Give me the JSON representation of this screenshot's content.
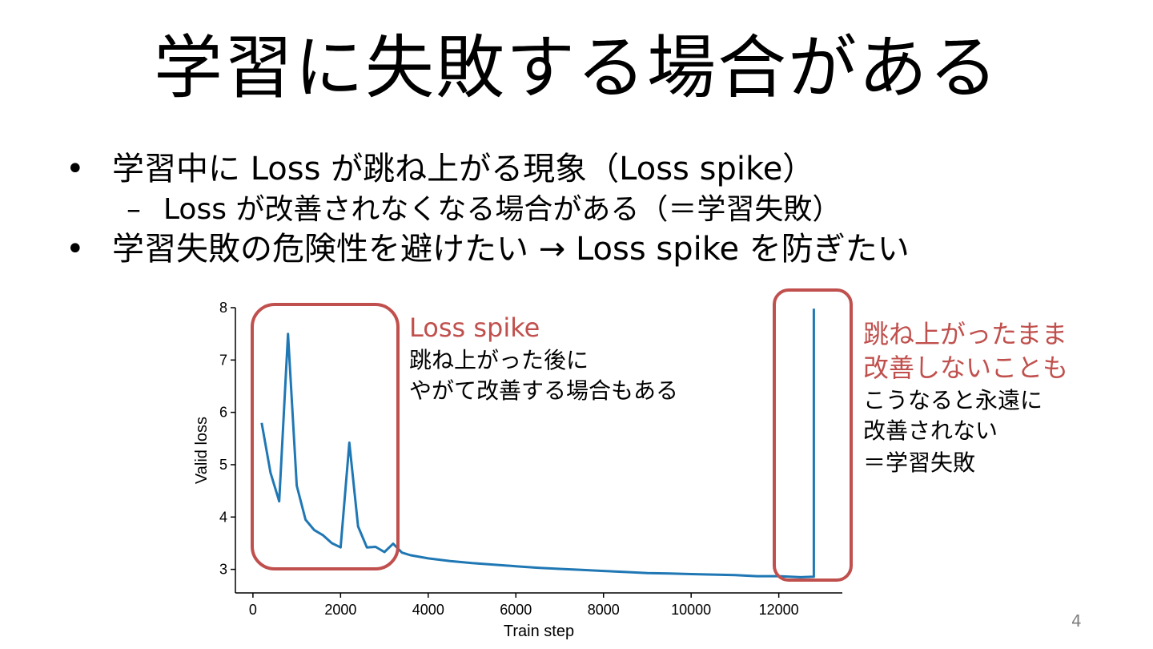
{
  "slide": {
    "title": "学習に失敗する場合がある",
    "bullets": [
      {
        "marker": "•",
        "text": "学習中に Loss が跳ね上がる現象（Loss spike）"
      },
      {
        "marker": "–",
        "text": "Loss が改善されなくなる場合がある（＝学習失敗）"
      },
      {
        "marker": "•",
        "text": "学習失敗の危険性を避けたい → Loss spike を防ぎたい"
      }
    ],
    "page_number": "4"
  },
  "annotations": {
    "left_title": "Loss spike",
    "left_line1": "跳ね上がった後に",
    "left_line2": "やがて改善する場合もある",
    "right_title1": "跳ね上がったまま",
    "right_title2": "改善しないことも",
    "right_line1": "こうなると永遠に",
    "right_line2": "改善されない",
    "right_line3": "＝学習失敗",
    "highlight_color": "#C0504D"
  },
  "chart_data": {
    "type": "line",
    "xlabel": "Train step",
    "ylabel": "Valid loss",
    "xlim": [
      -400,
      13450
    ],
    "ylim": [
      2.55,
      8.0
    ],
    "xticks": [
      0,
      2000,
      4000,
      6000,
      8000,
      10000,
      12000
    ],
    "yticks": [
      3,
      4,
      5,
      6,
      7,
      8
    ],
    "line_color": "#1F77B4",
    "series": [
      {
        "x": [
          200,
          400,
          600,
          800,
          1000,
          1200,
          1400,
          1600,
          1800,
          2000,
          2200,
          2400,
          2600,
          2800,
          3000,
          3200,
          3400,
          3600,
          4000,
          4500,
          5000,
          5500,
          6000,
          6500,
          7000,
          7500,
          8000,
          8500,
          9000,
          9500,
          10000,
          10500,
          11000,
          11500,
          12000,
          12500,
          12800,
          12800
        ],
        "y": [
          5.8,
          4.85,
          4.3,
          7.5,
          4.6,
          3.95,
          3.75,
          3.65,
          3.5,
          3.42,
          5.42,
          3.82,
          3.42,
          3.43,
          3.33,
          3.49,
          3.32,
          3.27,
          3.21,
          3.16,
          3.12,
          3.09,
          3.06,
          3.03,
          3.01,
          2.99,
          2.97,
          2.95,
          2.93,
          2.92,
          2.91,
          2.9,
          2.89,
          2.87,
          2.87,
          2.85,
          2.86,
          7.98
        ]
      }
    ]
  }
}
